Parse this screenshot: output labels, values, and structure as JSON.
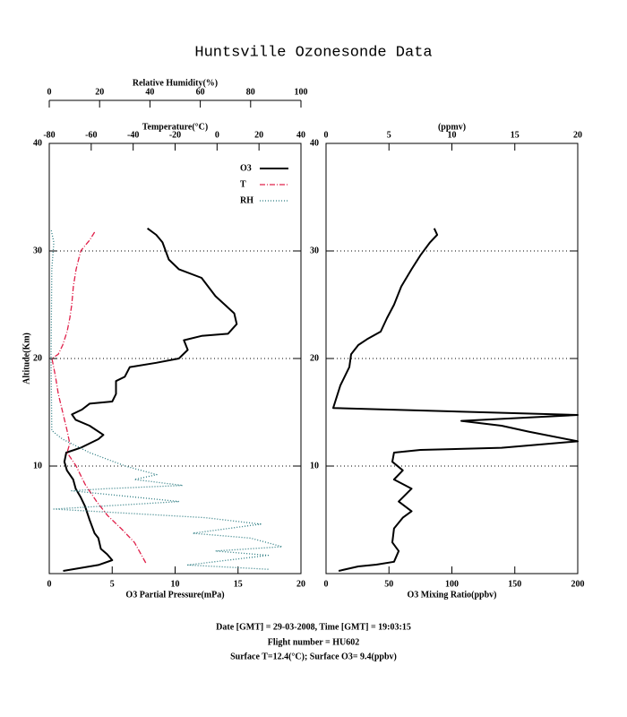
{
  "title": "Huntsville Ozonesonde Data",
  "footer": [
    "Date [GMT] = 29-03-2008,  Time [GMT] = 19:03:15",
    "Flight number = HU602",
    "Surface T=12.4(°C); Surface O3= 9.4(ppbv)"
  ],
  "chart_data": [
    {
      "type": "line",
      "ylabel": "Altitude(Km)",
      "ylim": [
        0,
        40
      ],
      "yticks": [
        10,
        20,
        30,
        40
      ],
      "grid": true,
      "legend": "top-right",
      "xlabel": "O3 Partial Pressure(mPa)",
      "xlim": [
        0,
        20
      ],
      "xticks": [
        0,
        5,
        10,
        15,
        20
      ],
      "x2label": "Temperature(°C)",
      "x2lim": [
        -80,
        40
      ],
      "x2ticks": [
        -80,
        -60,
        -40,
        -20,
        0,
        20,
        40
      ],
      "x3label": "Relative Humidity(%)",
      "x3lim": [
        0,
        100
      ],
      "x3ticks": [
        0,
        20,
        40,
        60,
        80,
        100
      ],
      "series": [
        {
          "name": "O3",
          "color": "#000000",
          "style": "solid",
          "axis": "x",
          "values": [
            1.1,
            3.9,
            5.0,
            4.6,
            4.1,
            3.9,
            3.6,
            3.2,
            2.85,
            2.5,
            2.1,
            1.9,
            1.4,
            1.2,
            1.35,
            2.5,
            3.9,
            4.3,
            3.2,
            2.1,
            1.8,
            2.6,
            3.2,
            5.0,
            5.3,
            5.3,
            6.0,
            6.4,
            8.5,
            10.3,
            11.0,
            10.7,
            12.1,
            14.2,
            14.9,
            14.7,
            13.2,
            12.1,
            10.3,
            9.5,
            9.0,
            8.5,
            7.8
          ],
          "altitude": [
            0.25,
            0.8,
            1.25,
            1.8,
            2.3,
            3.3,
            3.75,
            5.0,
            6.25,
            7.1,
            7.9,
            8.75,
            9.6,
            10.4,
            11.25,
            11.7,
            12.5,
            12.9,
            13.75,
            14.3,
            14.8,
            15.25,
            15.8,
            16.0,
            16.7,
            17.9,
            18.3,
            19.2,
            19.6,
            20.0,
            20.8,
            21.7,
            22.1,
            22.3,
            23.2,
            24.2,
            25.8,
            27.5,
            28.3,
            29.2,
            30.8,
            31.5,
            32.1
          ]
        },
        {
          "name": "T",
          "color": "#e0204a",
          "style": "dashdot",
          "axis": "x2",
          "values": [
            -34,
            -39.4,
            -45.8,
            -52.2,
            -57.4,
            -62.9,
            -67.2,
            -71.5,
            -70.2,
            -71.5,
            -73.6,
            -75.7,
            -77,
            -78.7,
            -75.7,
            -73.6,
            -71.5,
            -70.2,
            -69.3,
            -68.5,
            -67.2,
            -65,
            -60.8,
            -58.2
          ],
          "altitude": [
            1.0,
            2.9,
            4.2,
            5.4,
            6.7,
            8.3,
            10.0,
            11.25,
            12.1,
            13.3,
            15.0,
            16.7,
            18.3,
            20.0,
            20.4,
            21.25,
            22.5,
            23.75,
            25.0,
            26.7,
            28.3,
            30.0,
            31.0,
            31.8
          ]
        },
        {
          "name": "RH",
          "color": "#2a7a80",
          "style": "dotted",
          "axis": "x3",
          "values": [
            87,
            55,
            87,
            66,
            92.5,
            80,
            57,
            84,
            62,
            1.8,
            19.6,
            51.6,
            8.9,
            23,
            53,
            33.8,
            42.7,
            30.2,
            16,
            5.3,
            1,
            0.7,
            1,
            1.8,
            0.7
          ],
          "altitude": [
            0.4,
            0.8,
            1.7,
            2.1,
            2.5,
            3.3,
            3.75,
            4.6,
            5.2,
            6.0,
            6.25,
            6.7,
            7.7,
            7.9,
            8.2,
            8.75,
            9.2,
            10.0,
            11.25,
            12.5,
            13.3,
            20.0,
            28.3,
            30.8,
            32.0
          ]
        }
      ]
    },
    {
      "type": "line",
      "ylim": [
        0,
        40
      ],
      "yticks": [
        10,
        20,
        30,
        40
      ],
      "grid": true,
      "xlabel": "O3 Mixing Ratio(ppbv)",
      "xlim": [
        0,
        200
      ],
      "xticks": [
        0,
        50,
        100,
        150,
        200
      ],
      "x2label": "(ppmv)",
      "x2lim": [
        0,
        20
      ],
      "x2ticks": [
        0,
        5,
        10,
        15,
        20
      ],
      "series": [
        {
          "color": "#000000",
          "style": "solid",
          "axis": "x",
          "values": [
            10,
            25.6,
            39.9,
            54,
            57.7,
            52.7,
            54,
            61,
            68,
            57.7,
            68,
            54,
            61,
            52.7,
            54,
            75,
            139.5,
            200,
            161,
            139.5,
            107.5,
            200,
            5.7,
            11.4,
            18.5,
            19.9,
            25.6,
            32.7,
            43.4,
            48.4,
            54,
            59.8,
            68,
            75,
            82.6,
            88.3,
            86
          ],
          "altitude": [
            0.25,
            0.67,
            0.83,
            1.1,
            2.1,
            2.9,
            4.2,
            5.2,
            5.8,
            6.7,
            7.9,
            8.75,
            9.6,
            10.4,
            11.25,
            11.5,
            11.7,
            12.3,
            13.2,
            13.75,
            14.2,
            14.75,
            15.4,
            17.5,
            19.2,
            20.4,
            21.25,
            21.8,
            22.5,
            23.75,
            25.0,
            26.7,
            28.3,
            29.6,
            30.8,
            31.5,
            32.1
          ]
        }
      ]
    }
  ]
}
